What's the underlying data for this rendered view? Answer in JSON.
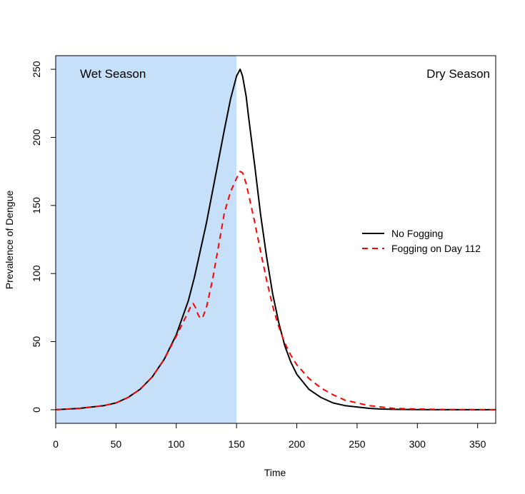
{
  "chart_data": {
    "type": "line",
    "title": "",
    "xlabel": "Time",
    "ylabel": "Prevalence of Dengue",
    "xlim": [
      0,
      365
    ],
    "ylim": [
      -10,
      260
    ],
    "xticks": [
      0,
      50,
      100,
      150,
      200,
      250,
      300,
      350
    ],
    "yticks": [
      0,
      50,
      100,
      150,
      200,
      250
    ],
    "grid": false,
    "legend_position": "right",
    "shaded_region": {
      "label": "Wet Season",
      "x_range": [
        0,
        150
      ],
      "color": "#c6e0fa"
    },
    "annotations": [
      {
        "text": "Wet Season",
        "x": 51,
        "y": 247
      },
      {
        "text": "Dry Season",
        "x": 330,
        "y": 247
      }
    ],
    "series": [
      {
        "name": "No Fogging",
        "color": "#000000",
        "style": "solid",
        "x": [
          0,
          10,
          20,
          30,
          40,
          50,
          60,
          70,
          80,
          90,
          100,
          110,
          115,
          120,
          125,
          130,
          135,
          140,
          145,
          150,
          153,
          155,
          158,
          160,
          165,
          170,
          175,
          180,
          185,
          190,
          195,
          200,
          210,
          220,
          230,
          240,
          250,
          260,
          270,
          280,
          300,
          320,
          340,
          365
        ],
        "y": [
          0,
          0.5,
          1,
          2,
          3,
          5,
          9,
          15,
          24,
          37,
          55,
          80,
          97,
          117,
          137,
          160,
          183,
          206,
          228,
          245,
          250,
          245,
          230,
          215,
          180,
          143,
          112,
          85,
          64,
          47,
          35,
          26,
          15,
          9,
          5,
          3,
          2,
          1,
          0.5,
          0.3,
          0.1,
          0,
          0,
          0
        ]
      },
      {
        "name": "Fogging on Day 112",
        "color": "#ff0000",
        "style": "dashed",
        "x": [
          0,
          10,
          20,
          30,
          40,
          50,
          60,
          70,
          80,
          90,
          100,
          110,
          112,
          114,
          116,
          118,
          120,
          122,
          125,
          130,
          135,
          140,
          145,
          150,
          153,
          155,
          158,
          160,
          165,
          170,
          175,
          180,
          185,
          190,
          195,
          200,
          210,
          220,
          230,
          240,
          250,
          260,
          270,
          280,
          300,
          320,
          340,
          365
        ],
        "y": [
          0,
          0.5,
          1,
          2,
          3,
          5,
          9,
          15,
          24,
          37,
          54,
          72,
          76,
          78,
          75,
          70,
          67,
          68,
          75,
          95,
          120,
          145,
          160,
          170,
          175,
          174,
          166,
          158,
          138,
          116,
          95,
          76,
          61,
          49,
          40,
          33,
          23,
          16,
          11,
          7,
          5,
          3,
          2,
          1,
          0.5,
          0.2,
          0.1,
          0
        ]
      }
    ]
  }
}
